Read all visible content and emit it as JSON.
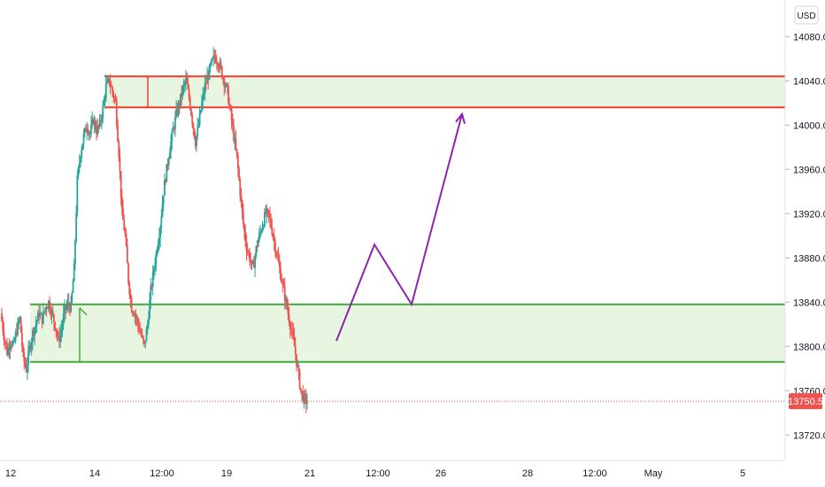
{
  "currency_button": "USD",
  "colors": {
    "up": "#26a69a",
    "down": "#ef5350",
    "resistance_line": "#f23b2c",
    "support_line": "#43a83d",
    "zone_fill": "#e8f5e1",
    "projection": "#8e24aa",
    "current_price": "#ef5350",
    "axis_text": "#131722"
  },
  "chart_data": {
    "type": "candlestick",
    "y_axis": {
      "ticks": [
        "14080.0",
        "14040.0",
        "14000.0",
        "13960.0",
        "13920.0",
        "13880.0",
        "13840.0",
        "13800.0",
        "13760.0",
        "13720.0"
      ],
      "tick_values": [
        14080,
        14040,
        14000,
        13960,
        13920,
        13880,
        13840,
        13800,
        13760,
        13720
      ],
      "range": [
        13697,
        14113
      ],
      "position": "right"
    },
    "x_axis": {
      "ticks": [
        "12",
        "14",
        "12:00",
        "19",
        "21",
        "12:00",
        "26",
        "28",
        "12:00",
        "May",
        "5"
      ]
    },
    "current_price": {
      "label": "13750.5",
      "value": 13750.5
    },
    "zones": [
      {
        "kind": "resistance",
        "top": 14044,
        "bottom": 14016,
        "marker_values": [
          14044,
          14016
        ]
      },
      {
        "kind": "support",
        "top": 13838,
        "bottom": 13786
      }
    ],
    "projection_path": [
      13805,
      13892,
      13838,
      14010
    ],
    "approx_price_path": [
      13830,
      13810,
      13795,
      13805,
      13800,
      13815,
      13825,
      13790,
      13780,
      13798,
      13812,
      13820,
      13830,
      13825,
      13835,
      13840,
      13830,
      13820,
      13805,
      13815,
      13832,
      13838,
      13835,
      13870,
      13950,
      13975,
      13990,
      14000,
      13992,
      14005,
      13995,
      14000,
      14015,
      14035,
      14040,
      14030,
      14020,
      13975,
      13920,
      13900,
      13860,
      13835,
      13830,
      13820,
      13810,
      13800,
      13820,
      13850,
      13870,
      13890,
      13910,
      13940,
      13960,
      13980,
      13995,
      14010,
      14020,
      14032,
      14040,
      14025,
      14005,
      13985,
      14000,
      14020,
      14035,
      14045,
      14055,
      14062,
      14058,
      14050,
      14040,
      14030,
      14010,
      13990,
      13970,
      13940,
      13910,
      13890,
      13880,
      13870,
      13888,
      13900,
      13910,
      13920,
      13918,
      13905,
      13890,
      13875,
      13860,
      13845,
      13830,
      13815,
      13800,
      13780,
      13760,
      13752,
      13750
    ]
  }
}
